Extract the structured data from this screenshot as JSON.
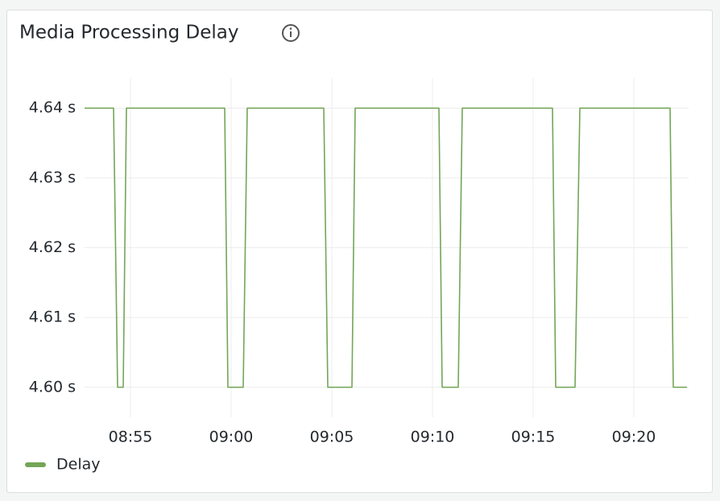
{
  "chart_data": {
    "type": "line",
    "title": "Media Processing Delay",
    "x": [
      532.72,
      534.16,
      534.36,
      534.64,
      534.8,
      539.68,
      539.84,
      540.6,
      540.8,
      544.6,
      544.8,
      546.0,
      546.16,
      550.32,
      550.48,
      551.28,
      551.48,
      555.96,
      556.12,
      557.08,
      557.32,
      561.8,
      561.96,
      562.64
    ],
    "series": [
      {
        "name": "Delay",
        "color": "#73a657",
        "values": [
          4.64,
          4.64,
          4.6,
          4.6,
          4.64,
          4.64,
          4.6,
          4.6,
          4.64,
          4.64,
          4.6,
          4.6,
          4.64,
          4.64,
          4.6,
          4.6,
          4.64,
          4.64,
          4.6,
          4.6,
          4.64,
          4.64,
          4.6,
          4.6
        ]
      }
    ],
    "xlim": [
      532.72,
      562.72
    ],
    "xticks": [
      {
        "value": 535,
        "label": "08:55"
      },
      {
        "value": 540,
        "label": "09:00"
      },
      {
        "value": 545,
        "label": "09:05"
      },
      {
        "value": 550,
        "label": "09:10"
      },
      {
        "value": 555,
        "label": "09:15"
      },
      {
        "value": 560,
        "label": "09:20"
      }
    ],
    "ylim": [
      4.5957,
      4.6443
    ],
    "yticks": [
      {
        "value": 4.6,
        "label": "4.60 s"
      },
      {
        "value": 4.61,
        "label": "4.61 s"
      },
      {
        "value": 4.62,
        "label": "4.62 s"
      },
      {
        "value": 4.63,
        "label": "4.63 s"
      },
      {
        "value": 4.64,
        "label": "4.64 s"
      }
    ],
    "grid": true
  }
}
